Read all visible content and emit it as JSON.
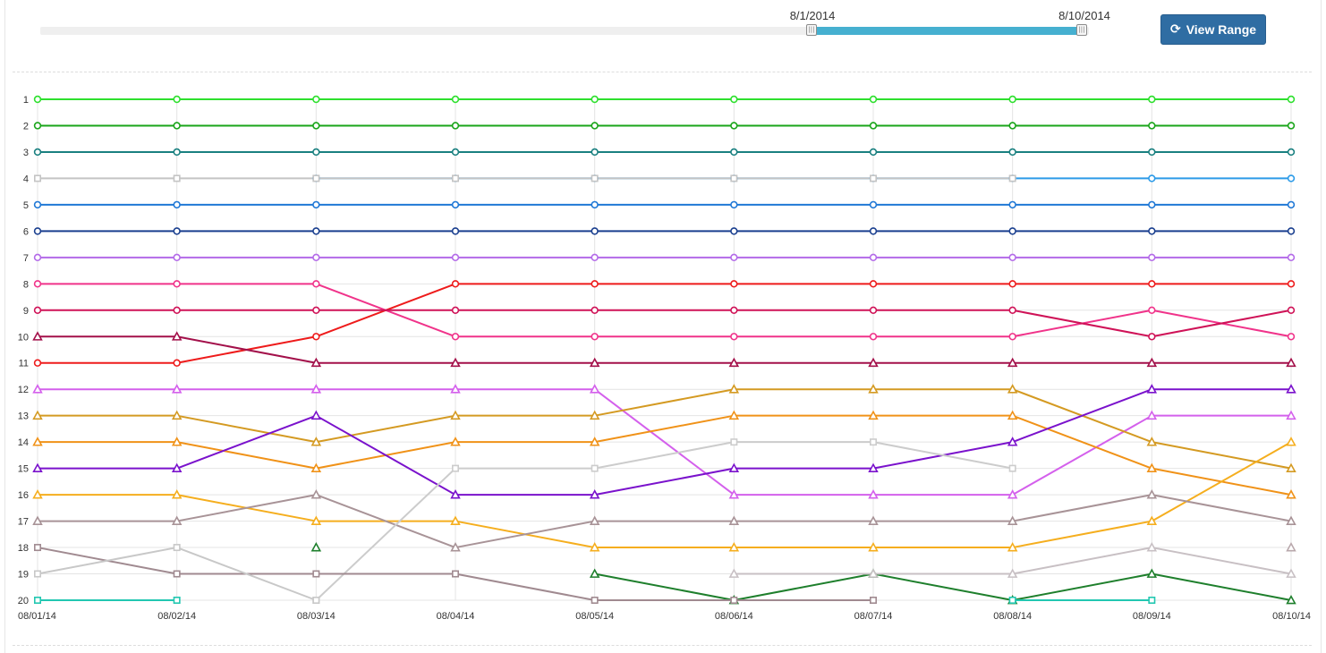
{
  "range_slider": {
    "start_label": "8/1/2014",
    "end_label": "8/10/2014",
    "handle_glyph": "|||",
    "selected_range": [
      "8/1/2014",
      "8/10/2014"
    ]
  },
  "toolbar": {
    "view_range_label": "View Range",
    "refresh_icon": "refresh-icon"
  },
  "chart_data": {
    "type": "line",
    "title": "",
    "xlabel": "",
    "ylabel": "",
    "categories": [
      "08/01/14",
      "08/02/14",
      "08/03/14",
      "08/04/14",
      "08/05/14",
      "08/06/14",
      "08/07/14",
      "08/08/14",
      "08/09/14",
      "08/10/14"
    ],
    "yticks": [
      1,
      2,
      3,
      4,
      5,
      6,
      7,
      8,
      9,
      10,
      11,
      12,
      13,
      14,
      15,
      16,
      17,
      18,
      19,
      20
    ],
    "y_reversed": true,
    "ylim": [
      1,
      20
    ],
    "grid": true,
    "legend": "none",
    "series": [
      {
        "color": "#2ee02e",
        "marker": "circle",
        "values": [
          1,
          1,
          1,
          1,
          1,
          1,
          1,
          1,
          1,
          1
        ]
      },
      {
        "color": "#1aa51a",
        "marker": "circle",
        "values": [
          2,
          2,
          2,
          2,
          2,
          2,
          2,
          2,
          2,
          2
        ]
      },
      {
        "color": "#1a8080",
        "marker": "circle",
        "values": [
          3,
          3,
          3,
          3,
          3,
          3,
          3,
          3,
          3,
          3
        ]
      },
      {
        "color": "#2d9be8",
        "marker": "circle",
        "values": [
          null,
          null,
          4,
          4,
          4,
          4,
          4,
          4,
          4,
          4
        ]
      },
      {
        "color": "#c4c4c4",
        "marker": "square",
        "values": [
          4,
          4,
          4,
          4,
          4,
          4,
          4,
          4,
          null,
          null
        ]
      },
      {
        "color": "#1f78d6",
        "marker": "circle",
        "values": [
          5,
          5,
          5,
          5,
          5,
          5,
          5,
          5,
          5,
          5
        ]
      },
      {
        "color": "#1a3f8f",
        "marker": "circle",
        "values": [
          6,
          6,
          6,
          6,
          6,
          6,
          6,
          6,
          6,
          6
        ]
      },
      {
        "color": "#b36ae8",
        "marker": "circle",
        "values": [
          7,
          7,
          7,
          7,
          7,
          7,
          7,
          7,
          7,
          7
        ]
      },
      {
        "color": "#f0338a",
        "marker": "circle",
        "values": [
          8,
          8,
          8,
          10,
          10,
          10,
          10,
          10,
          9,
          10
        ]
      },
      {
        "color": "#ee1b1b",
        "marker": "circle",
        "values": [
          11,
          11,
          10,
          8,
          8,
          8,
          8,
          8,
          8,
          8
        ]
      },
      {
        "color": "#cf1257",
        "marker": "circle",
        "values": [
          9,
          9,
          9,
          9,
          9,
          9,
          9,
          9,
          10,
          9
        ]
      },
      {
        "color": "#a3104a",
        "marker": "triangle",
        "values": [
          10,
          10,
          11,
          11,
          11,
          11,
          11,
          11,
          11,
          11
        ]
      },
      {
        "color": "#d460ec",
        "marker": "triangle",
        "values": [
          12,
          12,
          12,
          12,
          12,
          16,
          16,
          16,
          13,
          13
        ]
      },
      {
        "color": "#d49a22",
        "marker": "triangle",
        "values": [
          13,
          13,
          14,
          13,
          13,
          12,
          12,
          12,
          14,
          15
        ]
      },
      {
        "color": "#f09218",
        "marker": "triangle",
        "values": [
          14,
          14,
          15,
          14,
          14,
          13,
          13,
          13,
          15,
          16
        ]
      },
      {
        "color": "#7a12cc",
        "marker": "triangle",
        "values": [
          15,
          15,
          13,
          16,
          16,
          15,
          15,
          14,
          12,
          12
        ]
      },
      {
        "color": "#f5ae1e",
        "marker": "triangle",
        "values": [
          16,
          16,
          17,
          17,
          18,
          18,
          18,
          18,
          17,
          14
        ]
      },
      {
        "color": "#a89397",
        "marker": "triangle",
        "values": [
          17,
          17,
          16,
          18,
          17,
          17,
          17,
          17,
          16,
          17
        ]
      },
      {
        "color": "#1e7f2c",
        "marker": "triangle",
        "values": [
          null,
          null,
          18,
          null,
          19,
          20,
          19,
          20,
          19,
          20
        ]
      },
      {
        "color": "#cccccc",
        "marker": "square",
        "values": [
          null,
          null,
          20,
          15,
          15,
          14,
          14,
          15,
          null,
          null
        ]
      },
      {
        "color": "#a08a90",
        "marker": "square",
        "values": [
          18,
          19,
          19,
          19,
          20,
          20,
          20,
          null,
          null,
          null
        ]
      },
      {
        "color": "#c8c8c8",
        "marker": "square",
        "values": [
          19,
          18,
          20,
          null,
          null,
          null,
          null,
          null,
          null,
          null
        ]
      },
      {
        "color": "#c8c0c4",
        "marker": "triangle",
        "values": [
          null,
          null,
          null,
          null,
          null,
          19,
          19,
          19,
          18,
          19
        ]
      },
      {
        "color": "#b9a8ac",
        "marker": "triangle",
        "values": [
          null,
          null,
          null,
          null,
          null,
          null,
          null,
          null,
          null,
          18
        ]
      },
      {
        "color": "#22c7b1",
        "marker": "square",
        "values": [
          20,
          20,
          null,
          null,
          null,
          null,
          null,
          20,
          20,
          null
        ]
      }
    ]
  }
}
